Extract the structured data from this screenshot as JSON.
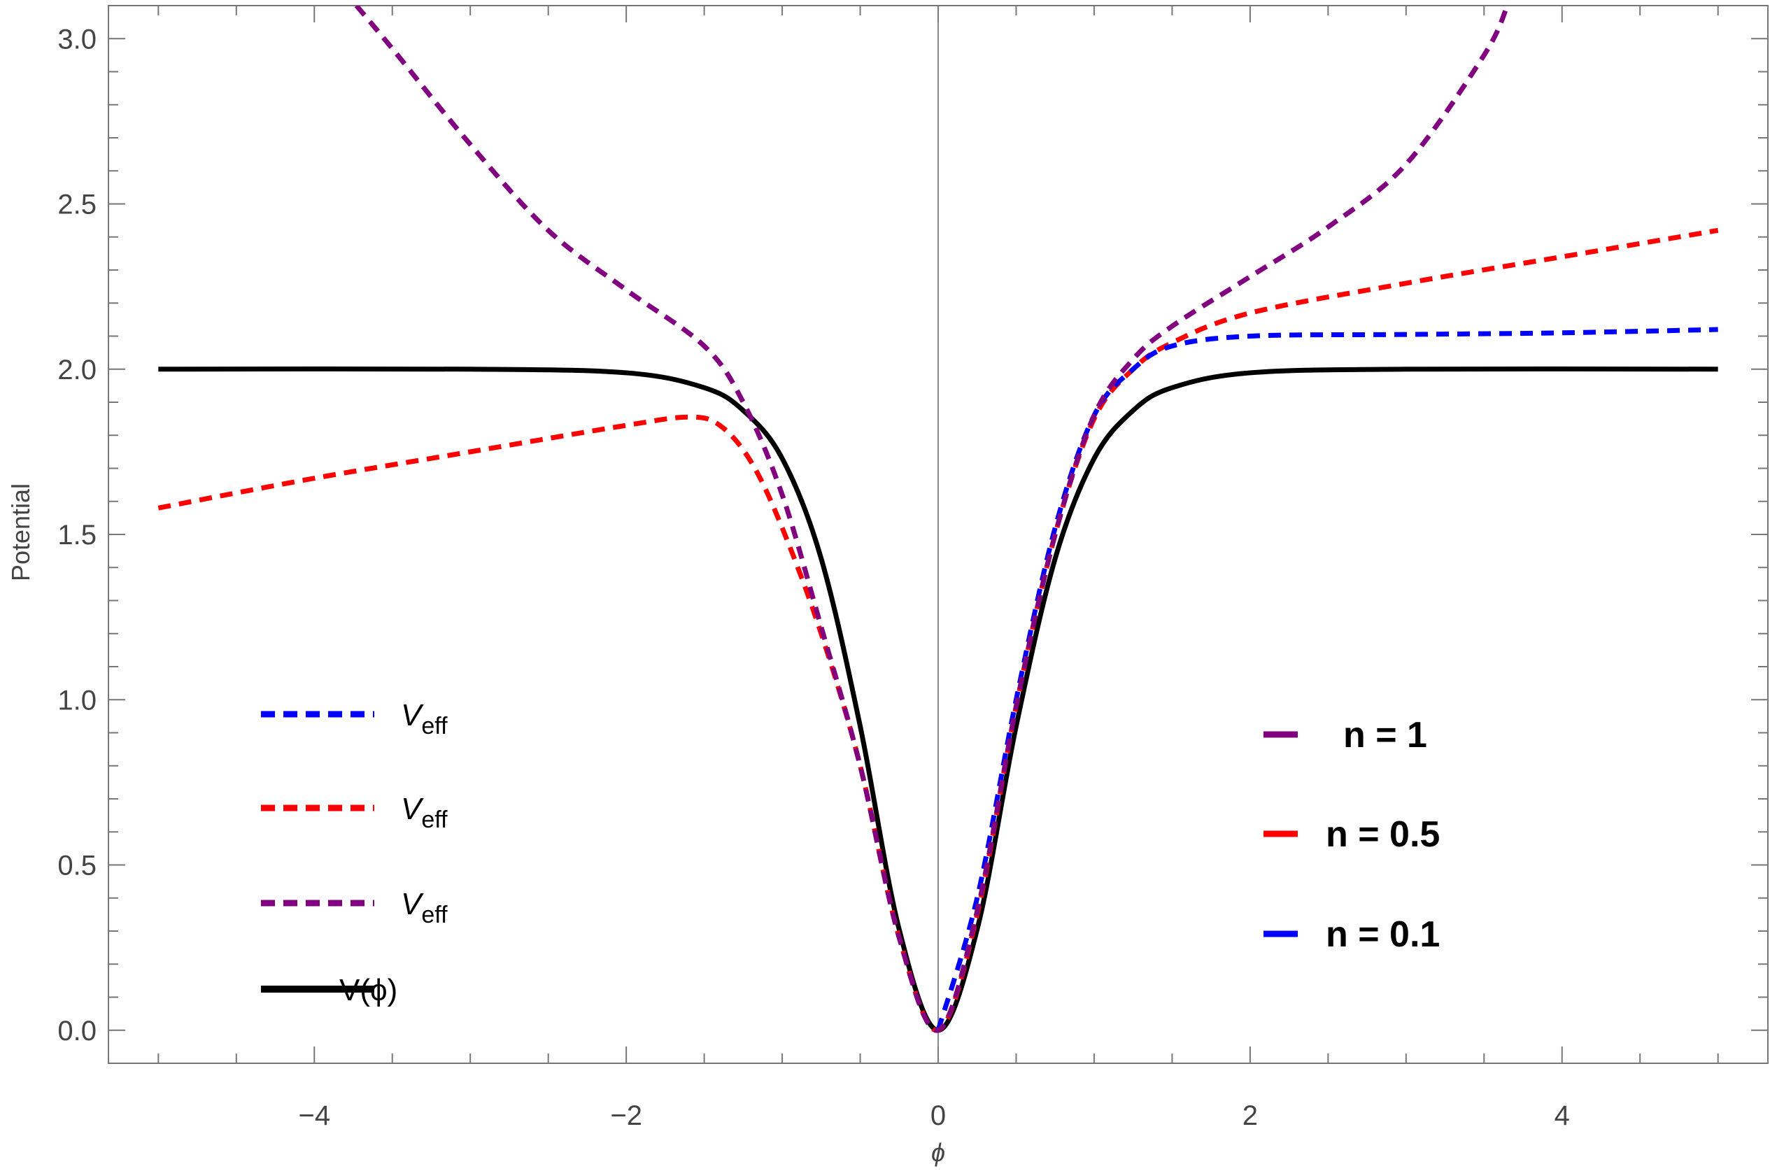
{
  "chart_data": {
    "type": "line",
    "title": "",
    "xlabel": "ϕ",
    "ylabel": "Potential",
    "xlim": [
      -5.32,
      5.32
    ],
    "ylim": [
      -0.1,
      3.1
    ],
    "x_ticks": [
      -4,
      -2,
      0,
      2,
      4
    ],
    "x_tick_labels": [
      "−4",
      "−2",
      "0",
      "2",
      "4"
    ],
    "y_ticks": [
      0.0,
      0.5,
      1.0,
      1.5,
      2.0,
      2.5,
      3.0
    ],
    "y_tick_labels": [
      "0.0",
      "0.5",
      "1.0",
      "1.5",
      "2.0",
      "2.5",
      "3.0"
    ],
    "grid": false,
    "series": [
      {
        "legend_id": 0,
        "color": "#0000ff",
        "style": "dashed",
        "points": [
          [
            0,
            0
          ],
          [
            0.25,
            0.4
          ],
          [
            0.5,
            1.0
          ],
          [
            0.75,
            1.52
          ],
          [
            1,
            1.86
          ],
          [
            1.25,
            2.0
          ],
          [
            1.5,
            2.07
          ],
          [
            2,
            2.1
          ],
          [
            3,
            2.105
          ],
          [
            4,
            2.11
          ],
          [
            5,
            2.12
          ]
        ]
      },
      {
        "legend_id": 1,
        "color": "#ff0000",
        "style": "dashed",
        "points": [
          [
            -5,
            1.58
          ],
          [
            -4,
            1.67
          ],
          [
            -3,
            1.75
          ],
          [
            -2,
            1.83
          ],
          [
            -1.6,
            1.855
          ],
          [
            -1.4,
            1.83
          ],
          [
            -1.2,
            1.72
          ],
          [
            -1,
            1.52
          ],
          [
            -0.75,
            1.2
          ],
          [
            -0.5,
            0.8
          ],
          [
            -0.25,
            0.28
          ],
          [
            0,
            0
          ],
          [
            0.25,
            0.35
          ],
          [
            0.5,
            0.98
          ],
          [
            0.75,
            1.5
          ],
          [
            1,
            1.85
          ],
          [
            1.25,
            2.0
          ],
          [
            1.5,
            2.08
          ],
          [
            2,
            2.17
          ],
          [
            3,
            2.26
          ],
          [
            4,
            2.34
          ],
          [
            5,
            2.42
          ]
        ]
      },
      {
        "legend_id": 2,
        "color": "#800080",
        "style": "dashed",
        "points": [
          [
            -3.73,
            3.1
          ],
          [
            -3.5,
            2.97
          ],
          [
            -3,
            2.68
          ],
          [
            -2.5,
            2.42
          ],
          [
            -2,
            2.24
          ],
          [
            -1.5,
            2.07
          ],
          [
            -1.25,
            1.9
          ],
          [
            -1,
            1.62
          ],
          [
            -0.75,
            1.22
          ],
          [
            -0.5,
            0.8
          ],
          [
            -0.25,
            0.28
          ],
          [
            0,
            0
          ],
          [
            0.25,
            0.36
          ],
          [
            0.5,
            0.98
          ],
          [
            0.75,
            1.5
          ],
          [
            1,
            1.86
          ],
          [
            1.25,
            2.03
          ],
          [
            1.5,
            2.13
          ],
          [
            2,
            2.28
          ],
          [
            2.5,
            2.43
          ],
          [
            3,
            2.62
          ],
          [
            3.5,
            2.95
          ],
          [
            3.65,
            3.1
          ]
        ]
      },
      {
        "legend_id": 3,
        "color": "#000000",
        "style": "solid",
        "points": [
          [
            -5,
            2.0
          ],
          [
            -3,
            2.0
          ],
          [
            -2,
            1.989
          ],
          [
            -1.5,
            1.944
          ],
          [
            -1.25,
            1.875
          ],
          [
            -1,
            1.73
          ],
          [
            -0.75,
            1.427
          ],
          [
            -0.5,
            0.92
          ],
          [
            -0.25,
            0.305
          ],
          [
            0,
            0
          ],
          [
            0.25,
            0.305
          ],
          [
            0.5,
            0.92
          ],
          [
            0.75,
            1.427
          ],
          [
            1,
            1.73
          ],
          [
            1.25,
            1.875
          ],
          [
            1.5,
            1.944
          ],
          [
            2,
            1.989
          ],
          [
            3,
            2.0
          ],
          [
            5,
            2.0
          ]
        ]
      }
    ],
    "legend_left": [
      {
        "label": "V",
        "sub": "eff",
        "color": "#0000ff",
        "style": "dashed"
      },
      {
        "label": "V",
        "sub": "eff",
        "color": "#ff0000",
        "style": "dashed"
      },
      {
        "label": "V",
        "sub": "eff",
        "color": "#800080",
        "style": "dashed"
      },
      {
        "label": "V(ϕ)",
        "sub": "",
        "color": "#000000",
        "style": "solid"
      }
    ],
    "legend_right": [
      {
        "label": "n = 1",
        "color": "#800080"
      },
      {
        "label": "n = 0.5",
        "color": "#ff0000"
      },
      {
        "label": "n = 0.1",
        "color": "#0000ff"
      }
    ]
  }
}
